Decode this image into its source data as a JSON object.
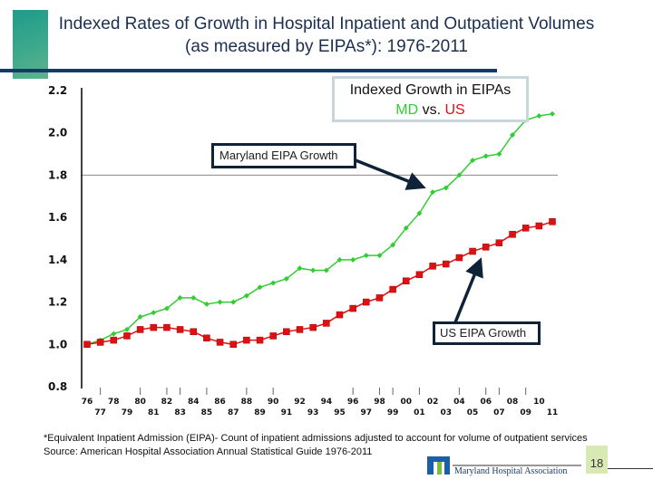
{
  "title": "Indexed Rates of Growth in Hospital Inpatient and Outpatient Volumes (as measured by EIPAs*): 1976-2011",
  "legend": {
    "line1": "Indexed Growth in EIPAs",
    "md": "MD",
    "vs": " vs. ",
    "us": "US"
  },
  "annotations": {
    "md": "Maryland EIPA Growth",
    "us": "US EIPA Growth"
  },
  "footnote": "*Equivalent Inpatient Admission (EIPA)- Count of inpatient admissions adjusted to account for volume of outpatient services",
  "source": "Source: American Hospital Association Annual Statistical Guide 1976-2011",
  "logo_text": "Maryland Hospital Association",
  "page_number": "18",
  "colors": {
    "md": "#33cc33",
    "us": "#dd1111",
    "title": "#1b2f4f",
    "rule": "#123a6e"
  },
  "chart_data": {
    "type": "line",
    "x": [
      "76",
      "77",
      "78",
      "79",
      "80",
      "81",
      "82",
      "83",
      "84",
      "85",
      "86",
      "87",
      "88",
      "89",
      "90",
      "91",
      "92",
      "93",
      "94",
      "95",
      "96",
      "97",
      "98",
      "99",
      "00",
      "01",
      "02",
      "03",
      "04",
      "05",
      "06",
      "07",
      "08",
      "09",
      "10",
      "11"
    ],
    "yticks": [
      "0.8",
      "1.0",
      "1.2",
      "1.4",
      "1.6",
      "1.8",
      "2.0",
      "2.2"
    ],
    "ylim": [
      0.8,
      2.2
    ],
    "grid": "single line at 1.8",
    "series": [
      {
        "name": "MD",
        "color": "#33cc33",
        "marker": "diamond",
        "values": [
          1.0,
          1.02,
          1.05,
          1.07,
          1.13,
          1.15,
          1.17,
          1.22,
          1.22,
          1.19,
          1.2,
          1.2,
          1.23,
          1.27,
          1.29,
          1.31,
          1.36,
          1.35,
          1.35,
          1.4,
          1.4,
          1.42,
          1.42,
          1.47,
          1.55,
          1.62,
          1.72,
          1.74,
          1.8,
          1.87,
          1.89,
          1.9,
          1.99,
          2.06,
          2.08,
          2.09
        ]
      },
      {
        "name": "US",
        "color": "#dd1111",
        "marker": "square",
        "values": [
          1.0,
          1.01,
          1.02,
          1.04,
          1.07,
          1.08,
          1.08,
          1.07,
          1.06,
          1.03,
          1.01,
          1.0,
          1.02,
          1.02,
          1.04,
          1.06,
          1.07,
          1.08,
          1.1,
          1.14,
          1.17,
          1.2,
          1.22,
          1.26,
          1.3,
          1.33,
          1.37,
          1.38,
          1.41,
          1.44,
          1.46,
          1.48,
          1.52,
          1.55,
          1.56,
          1.58
        ]
      }
    ]
  }
}
